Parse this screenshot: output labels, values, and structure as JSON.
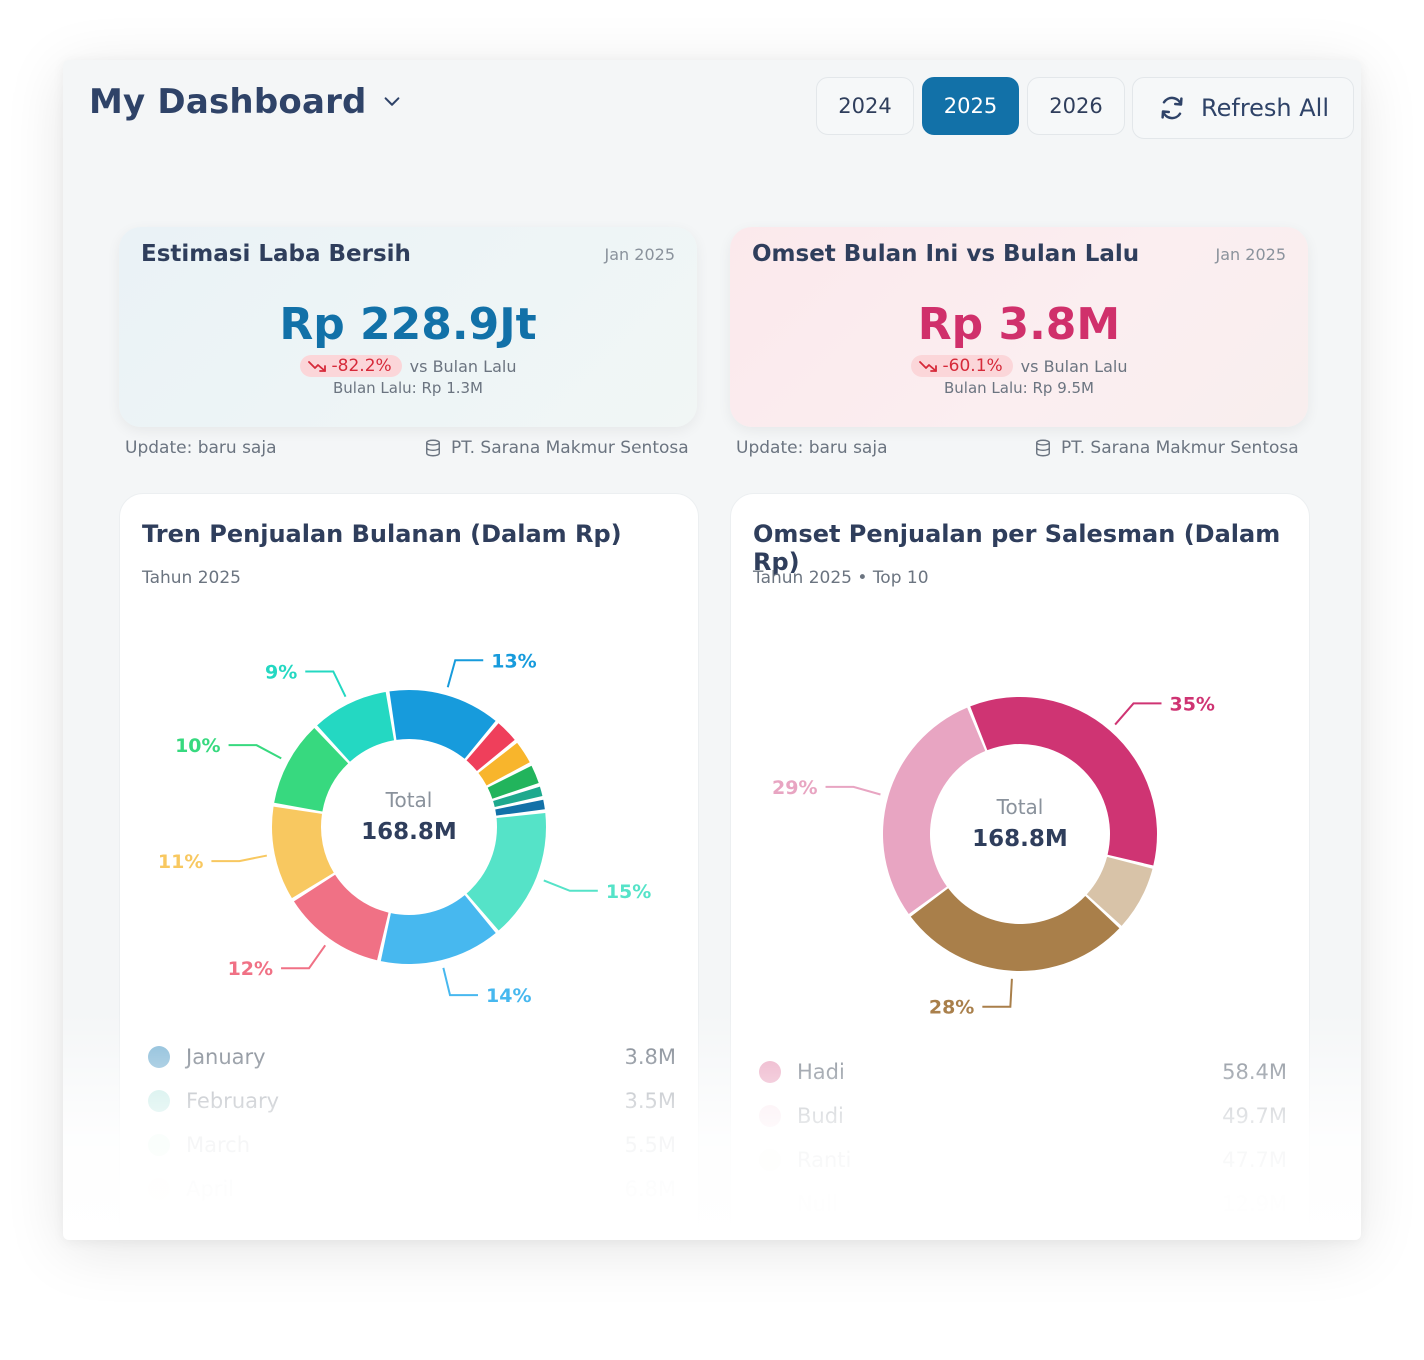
{
  "header": {
    "title": "My Dashboard",
    "years": [
      "2024",
      "2025",
      "2026"
    ],
    "active_year": "2025",
    "refresh_label": "Refresh All"
  },
  "kpis": [
    {
      "title": "Estimasi Laba Bersih",
      "date": "Jan 2025",
      "value": "Rp 228.9Jt",
      "change": "-82.2%",
      "vs_label": "vs Bulan Lalu",
      "prev": "Bulan Lalu: Rp 1.3M",
      "update": "Update: baru saja",
      "company": "PT. Sarana Makmur Sentosa"
    },
    {
      "title": "Omset Bulan Ini vs Bulan Lalu",
      "date": "Jan 2025",
      "value": "Rp 3.8M",
      "change": "-60.1%",
      "vs_label": "vs Bulan Lalu",
      "prev": "Bulan Lalu: Rp 9.5M",
      "update": "Update: baru saja",
      "company": "PT. Sarana Makmur Sentosa"
    }
  ],
  "charts": {
    "monthly": {
      "title": "Tren Penjualan Bulanan (Dalam Rp)",
      "subtitle": "Tahun 2025",
      "center_label": "Total",
      "center_value": "168.8M"
    },
    "salesman": {
      "title": "Omset Penjualan per Salesman (Dalam Rp)",
      "subtitle": "Tahun 2025 • Top 10",
      "center_label": "Total",
      "center_value": "168.8M"
    }
  },
  "chart_data": [
    {
      "type": "pie",
      "title": "Tren Penjualan Bulanan (Dalam Rp)",
      "total": "168.8M",
      "slices": [
        {
          "percent": 13,
          "label": "13%",
          "color": "#179bdc"
        },
        {
          "percent": 3,
          "label": "",
          "color": "#ef3f5b"
        },
        {
          "percent": 3,
          "label": "",
          "color": "#f8b52c"
        },
        {
          "percent": 2.5,
          "label": "",
          "color": "#22b45c"
        },
        {
          "percent": 1.5,
          "label": "",
          "color": "#1ea98d"
        },
        {
          "percent": 1.5,
          "label": "",
          "color": "#1271a8"
        },
        {
          "percent": 15,
          "label": "15%",
          "color": "#55e3c8"
        },
        {
          "percent": 14,
          "label": "14%",
          "color": "#47b8ef"
        },
        {
          "percent": 12,
          "label": "12%",
          "color": "#f07185"
        },
        {
          "percent": 11,
          "label": "11%",
          "color": "#f8c860"
        },
        {
          "percent": 10,
          "label": "10%",
          "color": "#37d97f"
        },
        {
          "percent": 9,
          "label": "9%",
          "color": "#24d8c2"
        }
      ],
      "legend": [
        {
          "name": "January",
          "value": "3.8M",
          "color": "#7ab3d4"
        },
        {
          "name": "February",
          "value": "3.5M",
          "color": "#9fded6"
        },
        {
          "name": "March",
          "value": "5.5M",
          "color": "#b4ecd2"
        },
        {
          "name": "April",
          "value": "6.8M",
          "color": "#fbe6b5"
        }
      ]
    },
    {
      "type": "pie",
      "title": "Omset Penjualan per Salesman (Dalam Rp)",
      "total": "168.8M",
      "slices": [
        {
          "percent": 35,
          "label": "35%",
          "color": "#cf3473"
        },
        {
          "percent": 8,
          "label": "",
          "color": "#d8c3a8"
        },
        {
          "percent": 28,
          "label": "28%",
          "color": "#a97f4a"
        },
        {
          "percent": 29,
          "label": "29%",
          "color": "#e8a5c2"
        }
      ],
      "legend": [
        {
          "name": "Hadi",
          "value": "58.4M",
          "color": "#e9a1bd"
        },
        {
          "name": "Budi",
          "value": "49.7M",
          "color": "#f7d8e4"
        },
        {
          "name": "Ranti",
          "value": "47.7M",
          "color": "#ede4da"
        },
        {
          "name": "Null",
          "value": "12.9M",
          "color": "#f4f2f3"
        }
      ]
    }
  ]
}
